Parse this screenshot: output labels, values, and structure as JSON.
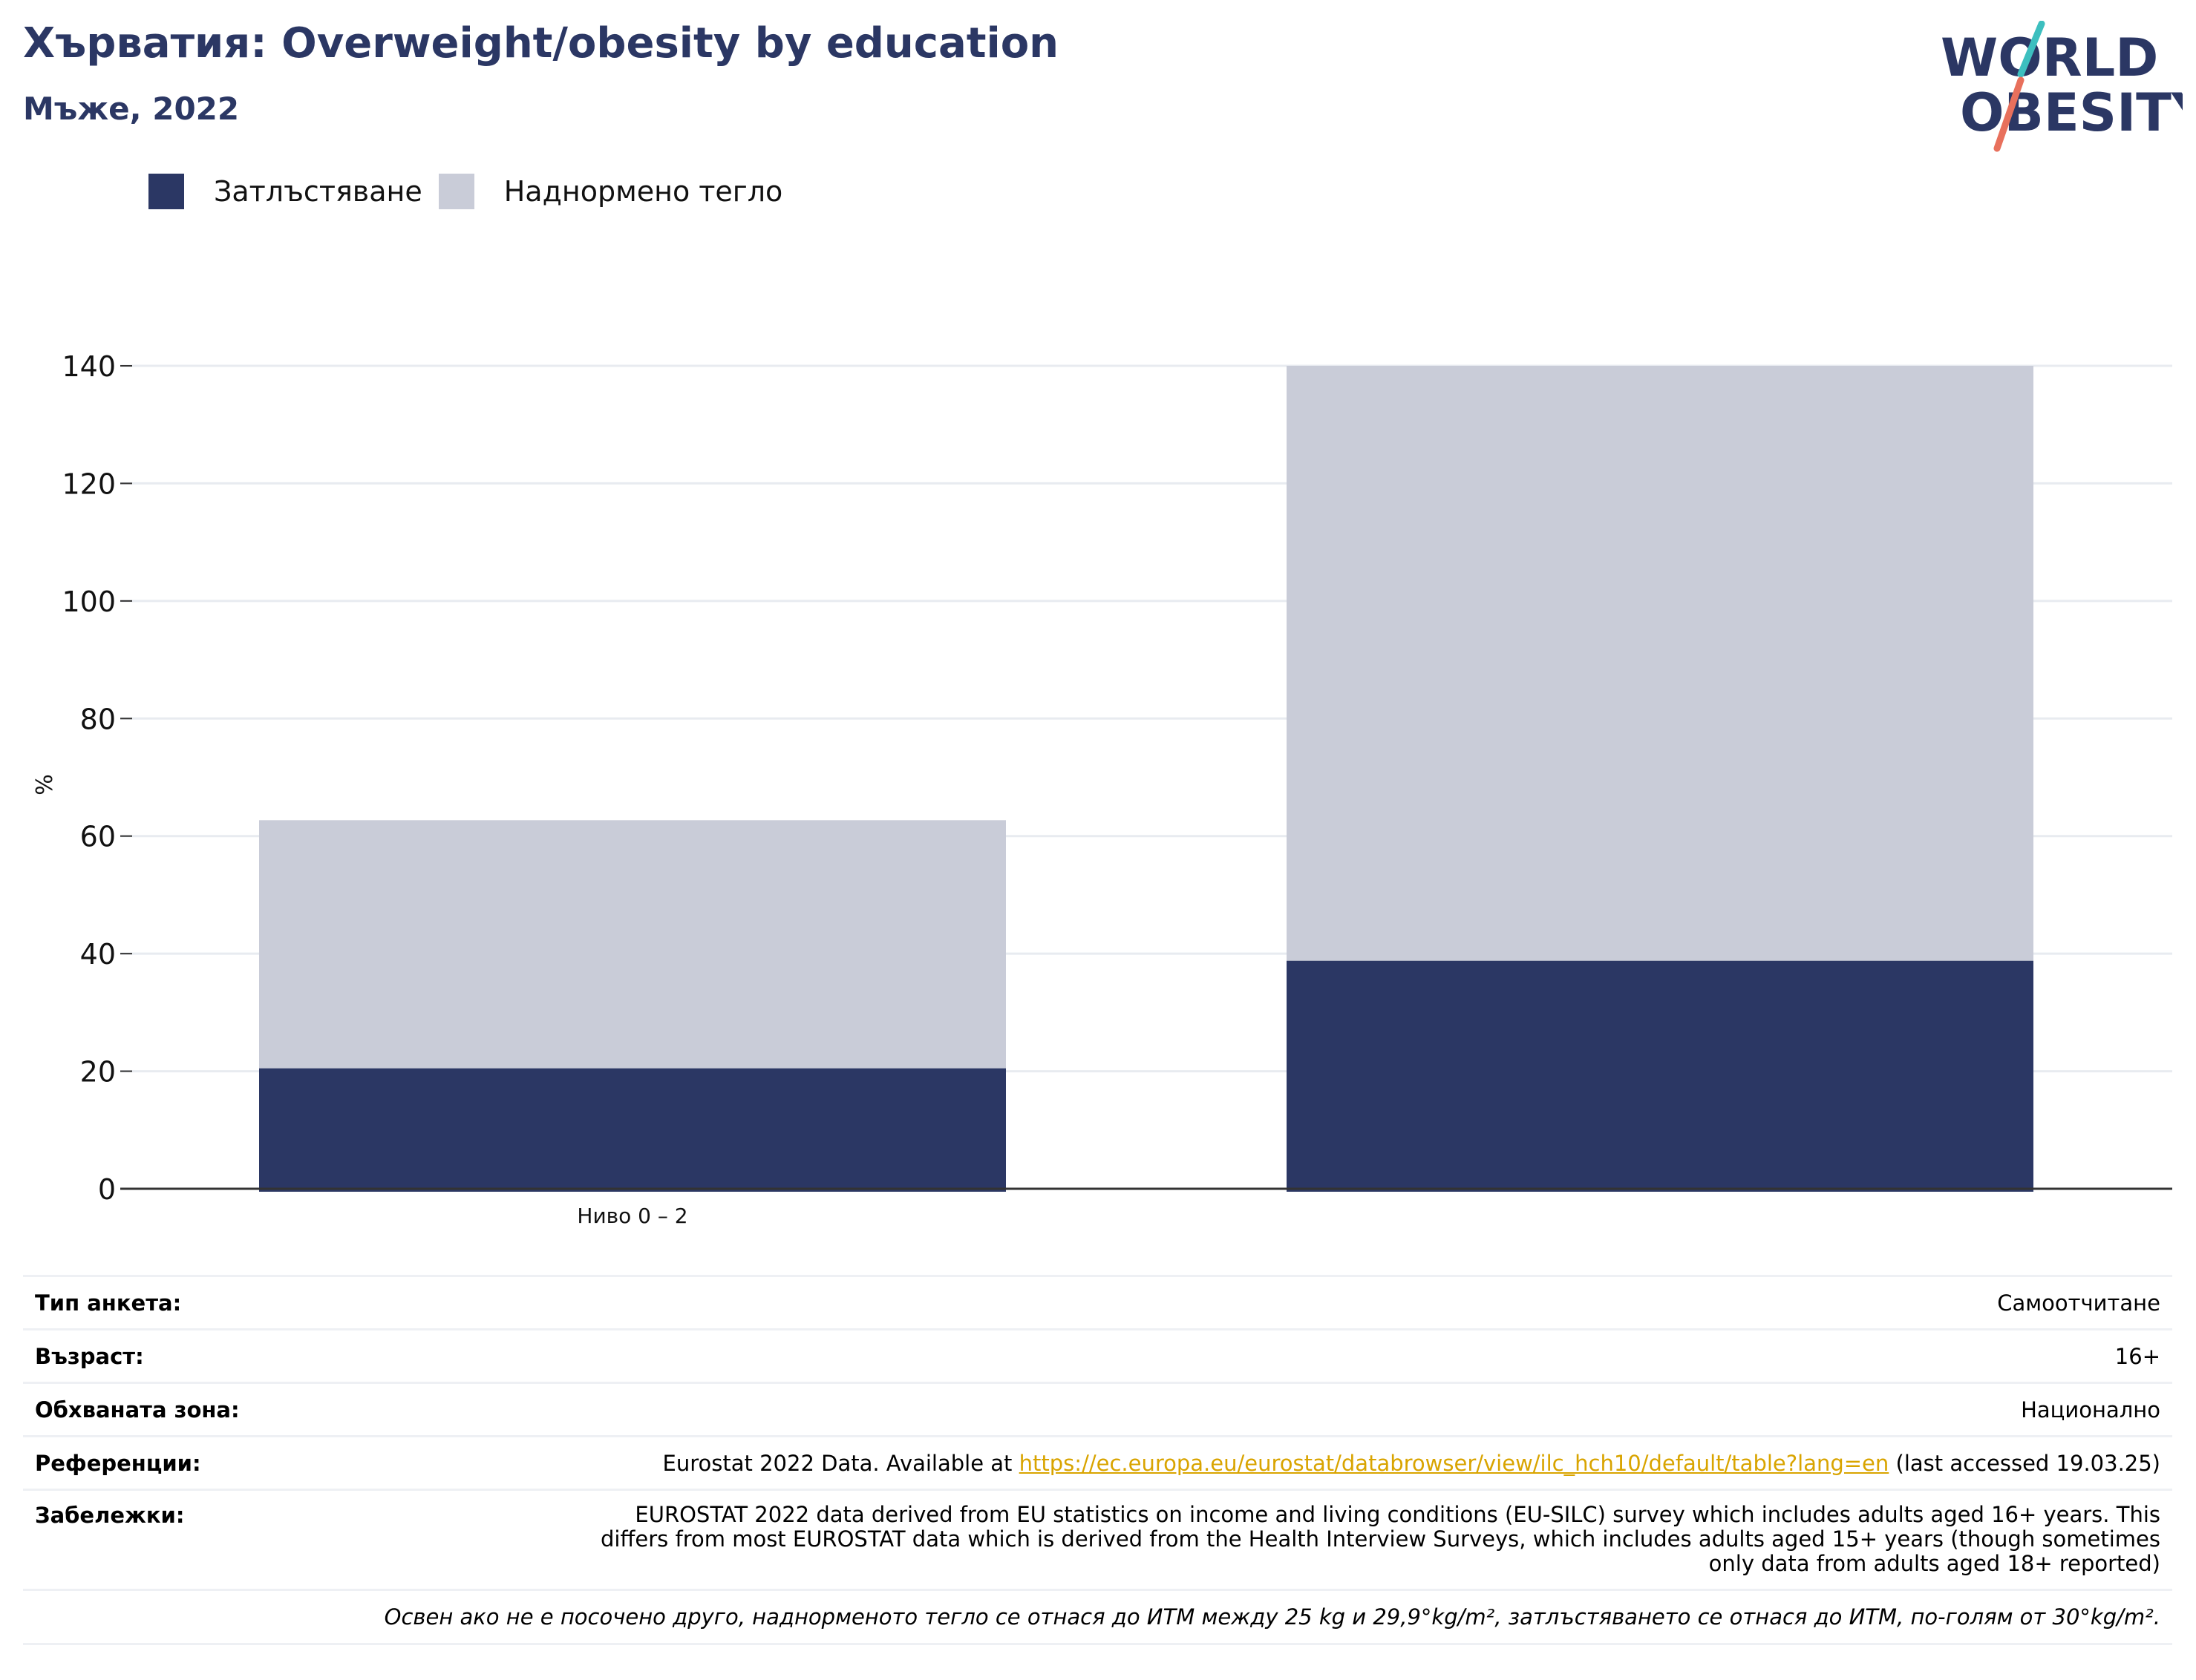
{
  "header": {
    "title": "Хърватия: Overweight/obesity by education",
    "subtitle": "Мъже, 2022"
  },
  "logo": {
    "line1": "WORLD",
    "line2": "OBESITY"
  },
  "colors": {
    "obesity": "#2b3764",
    "overweight": "#c9ccd8",
    "title": "#2b3764",
    "link": "#d9a400"
  },
  "chart_data": {
    "type": "bar",
    "stacked": true,
    "categories": [
      "Ниво 0 – 2",
      ""
    ],
    "series": [
      {
        "name": "Затлъстяване",
        "values": [
          20.5,
          38.8
        ]
      },
      {
        "name": "Наднормено тегло",
        "values": [
          42.2,
          101.2
        ]
      }
    ],
    "ylabel": "%",
    "ylim": [
      0,
      140
    ],
    "yticks": [
      0,
      20,
      40,
      60,
      80,
      100,
      120,
      140
    ],
    "grid": true,
    "legend": "top-left"
  },
  "info": {
    "survey_type_label": "Тип анкета:",
    "survey_type_value": "Самоотчитане",
    "age_label": "Възраст:",
    "age_value": "16+",
    "coverage_label": "Обхваната зона:",
    "coverage_value": "Национално",
    "references_label": "Референции:",
    "references_prefix": "Eurostat 2022 Data. Available at ",
    "references_link": "https://ec.europa.eu/eurostat/databrowser/view/ilc_hch10/default/table?lang=en",
    "references_suffix": " (last accessed 19.03.25)",
    "notes_label": "Забележки:",
    "notes_value": "EUROSTAT 2022 data derived from EU statistics on income and living conditions (EU-SILC) survey which includes adults aged 16+ years. This differs from most EUROSTAT data which is derived from the Health Interview Surveys, which includes adults aged 15+ years (though sometimes only data from adults aged 18+ reported)",
    "footnote": "Освен ако не е посочено друго, наднорменото тегло се отнася до ИТМ между 25 kg и 29,9°kg/m², затлъстяването се отнася до ИТМ, по-голям от 30°kg/m²."
  }
}
